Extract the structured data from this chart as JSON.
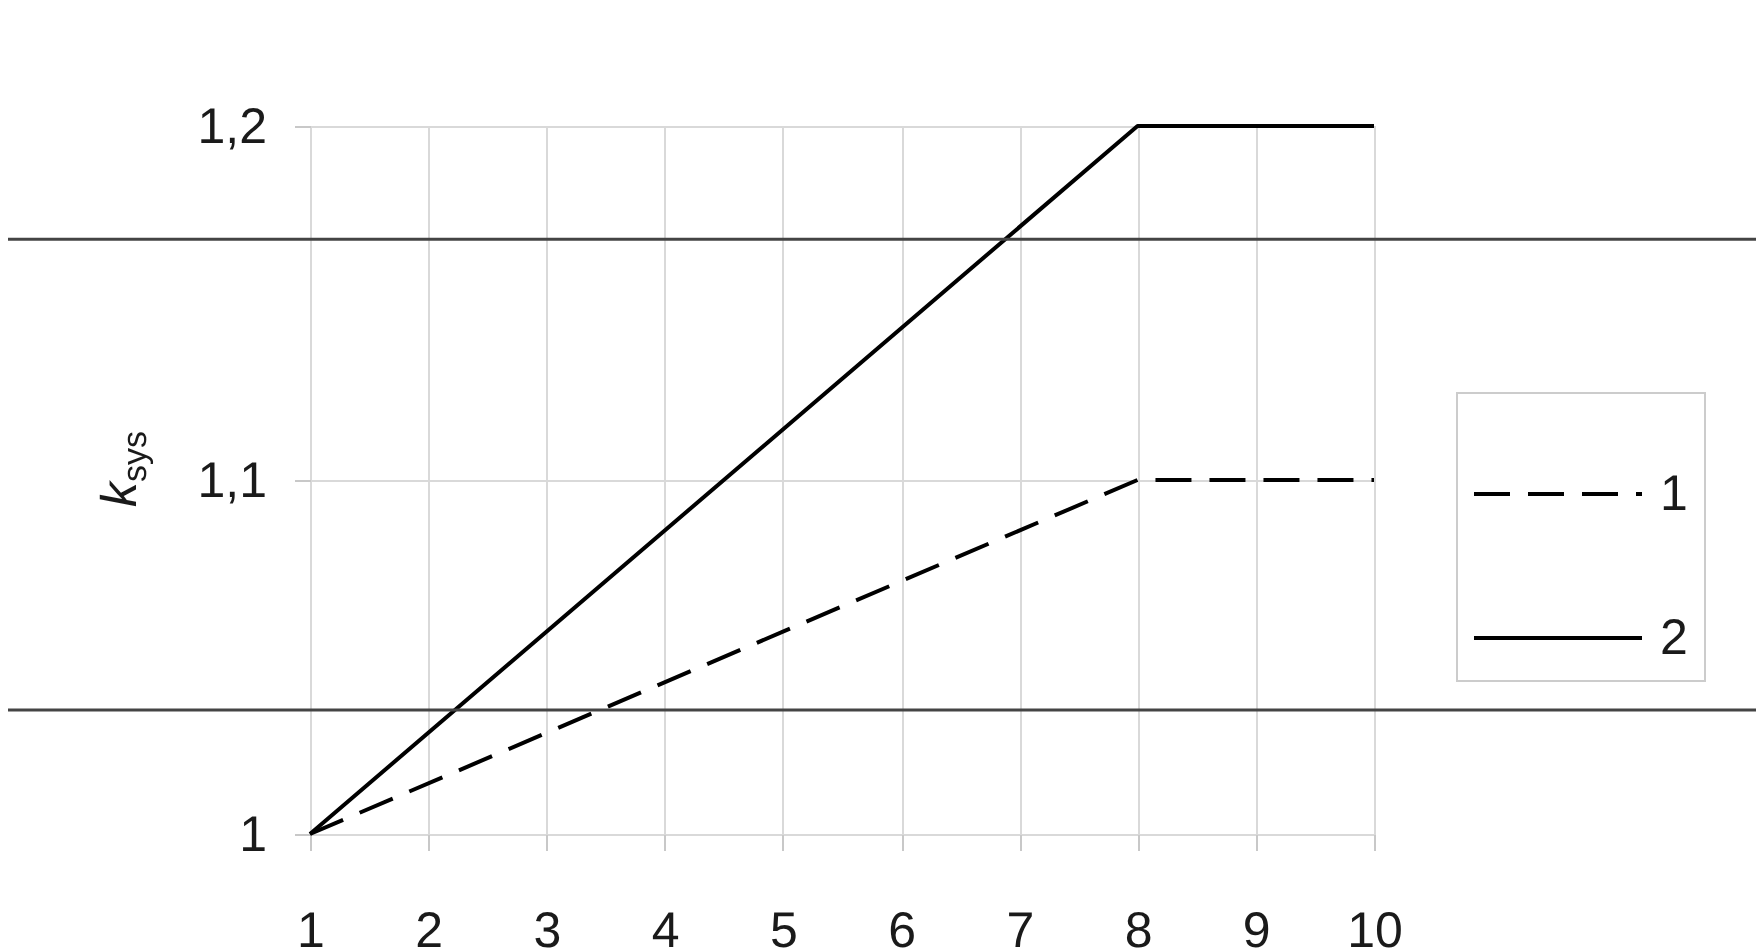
{
  "chart_data": {
    "type": "line",
    "ylabel": "k$_{sys}$",
    "x": [
      1,
      8,
      10
    ],
    "series": [
      {
        "name": "1",
        "color": "#000000",
        "line_style": "dashed",
        "values": [
          1,
          1.1,
          1.1
        ]
      },
      {
        "name": "2",
        "color": "#000000",
        "line_style": "solid",
        "values": [
          1,
          1.2,
          1.2
        ]
      }
    ],
    "xlim": [
      1,
      10
    ],
    "xticks": [
      1,
      2,
      3,
      4,
      5,
      6,
      7,
      8,
      9,
      10
    ],
    "ylim": [
      1,
      1.2
    ],
    "yticks": [
      1,
      {
        "value": 1.1,
        "label": "1,1"
      },
      {
        "value": 1.2,
        "label": "1,2"
      }
    ],
    "ref_lines": [
      {
        "axis": "y",
        "value": 1.168,
        "color": "#444444"
      },
      {
        "axis": "y",
        "value": 1.035,
        "color": "#444444"
      }
    ],
    "grid": true,
    "legend": "right"
  }
}
